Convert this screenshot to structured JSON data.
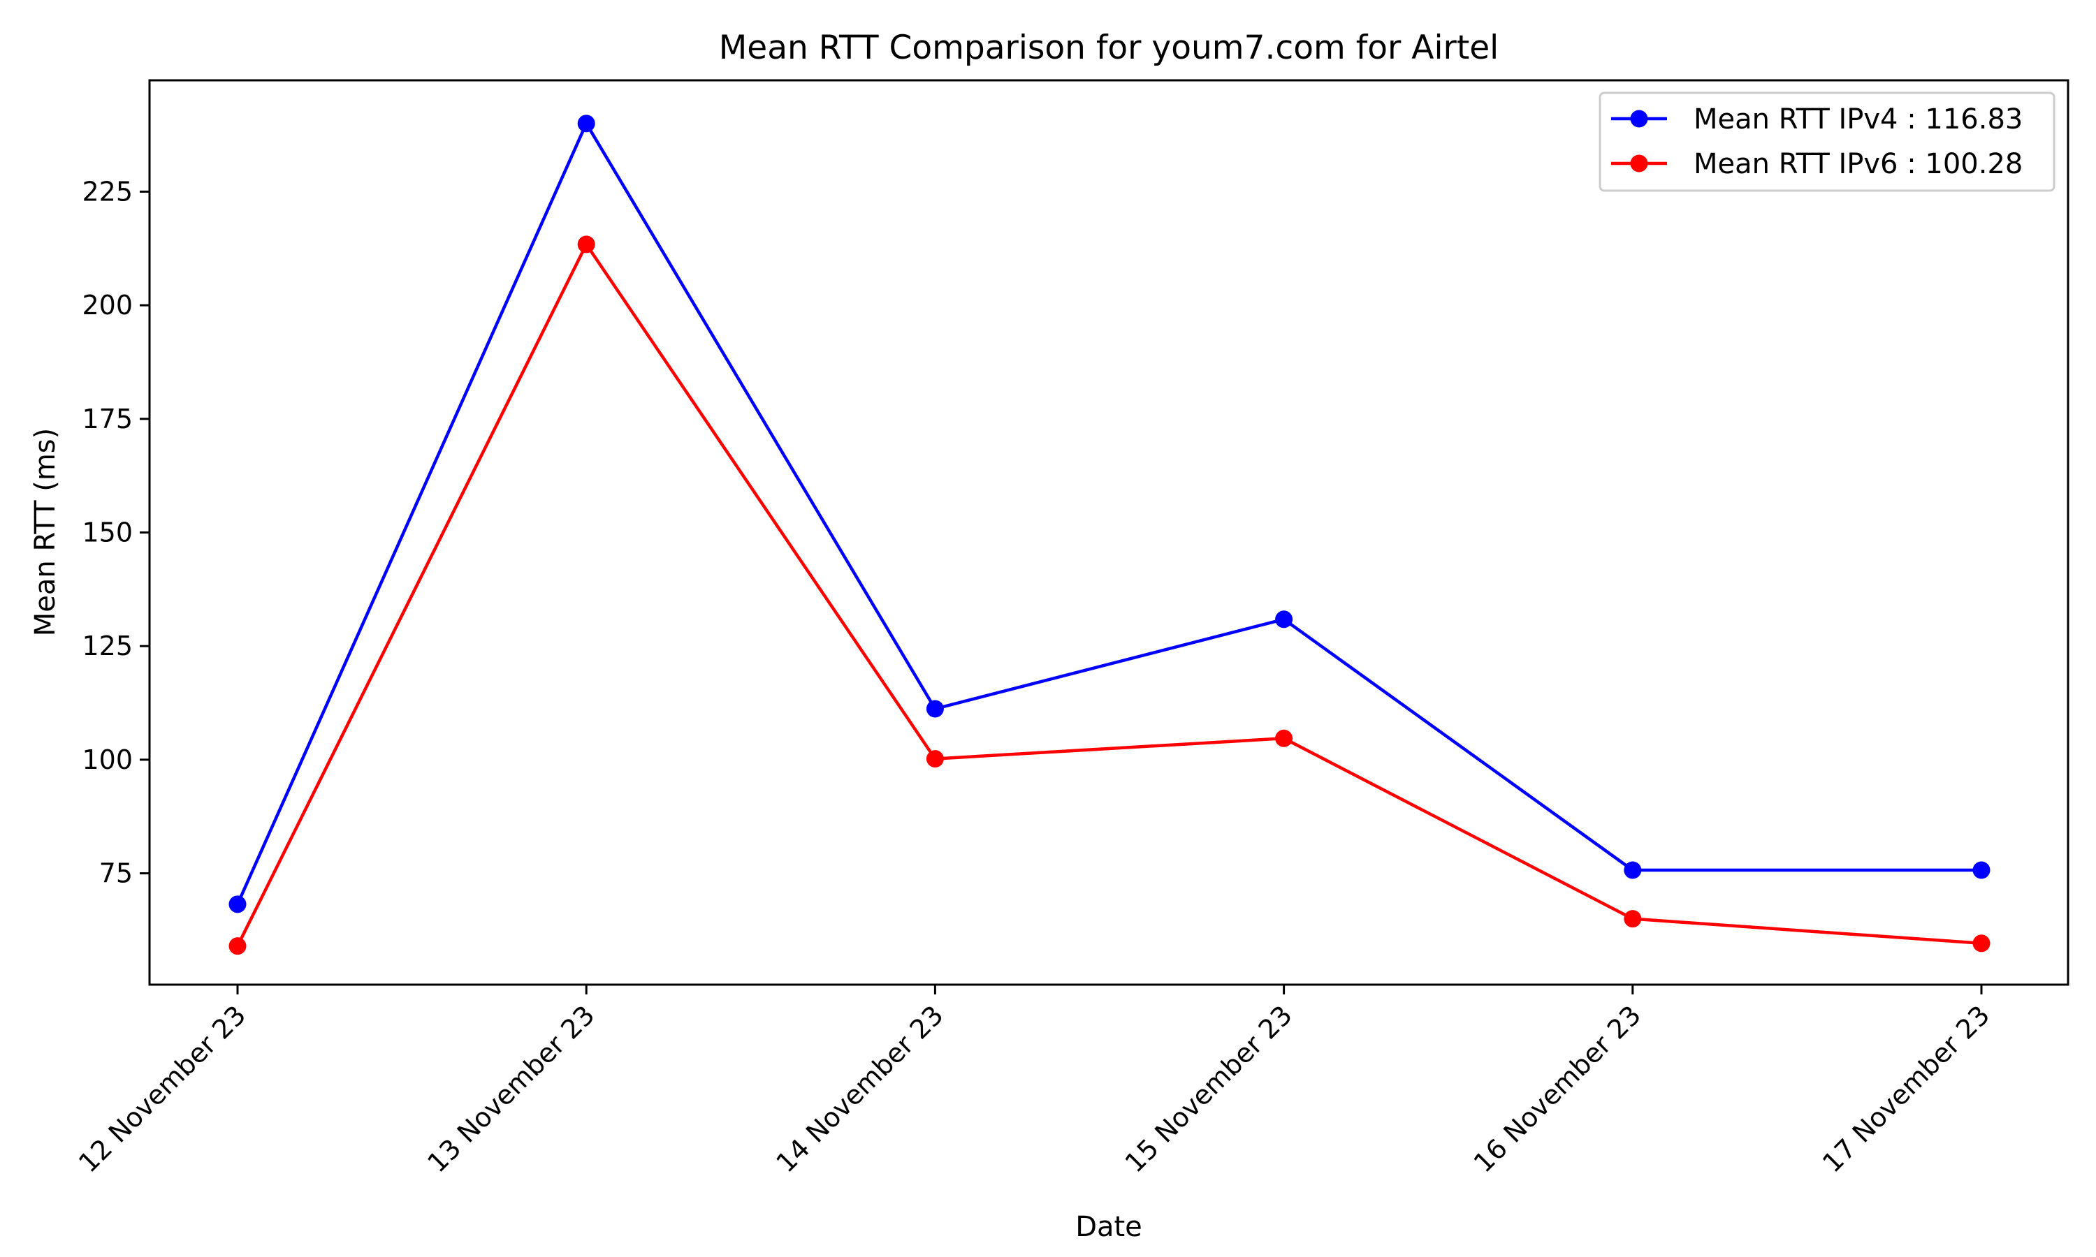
{
  "chart_data": {
    "type": "line",
    "title": "Mean RTT Comparison for youm7.com for Airtel",
    "xlabel": "Date",
    "ylabel": "Mean RTT (ms)",
    "categories": [
      "12 November 23",
      "13 November 23",
      "14 November 23",
      "15 November 23",
      "16 November 23",
      "17 November 23"
    ],
    "series": [
      {
        "name": "Mean RTT IPv4 : 116.83",
        "color": "#0000ff",
        "values": [
          68.2,
          240.0,
          111.2,
          130.9,
          75.7,
          75.7
        ]
      },
      {
        "name": "Mean RTT IPv6 : 100.28",
        "color": "#ff0000",
        "values": [
          59.0,
          213.4,
          100.2,
          104.7,
          65.0,
          59.6
        ]
      }
    ],
    "yticks": [
      75,
      100,
      125,
      150,
      175,
      200,
      225
    ],
    "ylim": [
      50.5,
      249.5
    ],
    "grid": false,
    "legend_position": "upper right"
  }
}
